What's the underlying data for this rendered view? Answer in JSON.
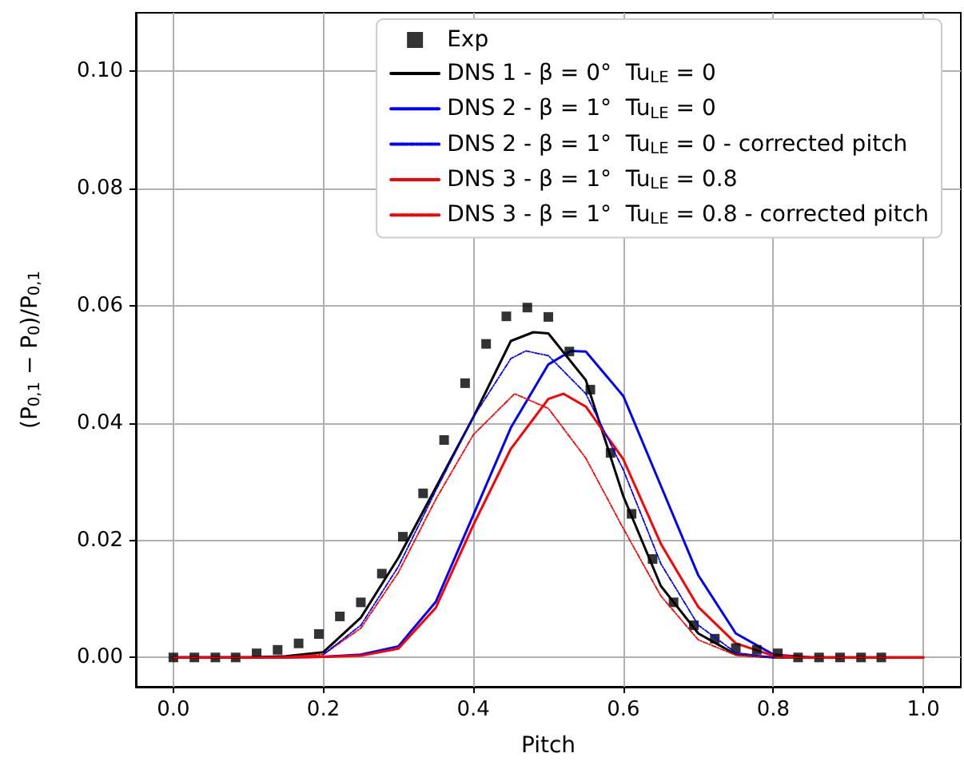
{
  "chart_data": {
    "type": "line",
    "xlabel": "Pitch",
    "ylabel": "(P$_{0,1}$ − P$_{0}$)/P$_{0,1}$",
    "xlim": [
      -0.05,
      1.05
    ],
    "ylim": [
      -0.005,
      0.11
    ],
    "xticks": [
      {
        "value": 0,
        "label": "0.0"
      },
      {
        "value": 0.2,
        "label": "0.2"
      },
      {
        "value": 0.4,
        "label": "0.4"
      },
      {
        "value": 0.6,
        "label": "0.6"
      },
      {
        "value": 0.8,
        "label": "0.8"
      },
      {
        "value": 1,
        "label": "1.0"
      }
    ],
    "yticks": [
      {
        "value": 0,
        "label": "0.00"
      },
      {
        "value": 0.02,
        "label": "0.02"
      },
      {
        "value": 0.04,
        "label": "0.04"
      },
      {
        "value": 0.06,
        "label": "0.06"
      },
      {
        "value": 0.08,
        "label": "0.08"
      },
      {
        "value": 0.1,
        "label": "0.10"
      }
    ],
    "grid": true,
    "legend": "top right",
    "series": [
      {
        "name": "Exp",
        "type": "scatter",
        "marker": "square",
        "color": "#000000",
        "x": [
          0,
          0.028,
          0.056,
          0.083,
          0.111,
          0.139,
          0.167,
          0.194,
          0.222,
          0.25,
          0.278,
          0.306,
          0.333,
          0.361,
          0.389,
          0.417,
          0.444,
          0.472,
          0.5,
          0.528,
          0.556,
          0.583,
          0.611,
          0.639,
          0.667,
          0.694,
          0.722,
          0.75,
          0.778,
          0.806,
          0.833,
          0.861,
          0.889,
          0.917,
          0.944
        ],
        "values": [
          0,
          0,
          0,
          0,
          0.0007,
          0.0013,
          0.0024,
          0.004,
          0.007,
          0.0094,
          0.0143,
          0.0206,
          0.028,
          0.0371,
          0.0468,
          0.0535,
          0.0582,
          0.0597,
          0.0581,
          0.0522,
          0.0457,
          0.0349,
          0.0245,
          0.0168,
          0.0094,
          0.0055,
          0.0032,
          0.0016,
          0.0013,
          0.0007,
          0,
          0,
          0,
          0,
          0
        ]
      },
      {
        "name": "DNS 1 - β = 0°  Tu$_{LE}$ = 0",
        "marker": "none",
        "line_style": "solid",
        "color": "#000000",
        "x": [
          0,
          0.1,
          0.15,
          0.2,
          0.25,
          0.3,
          0.35,
          0.4,
          0.45,
          0.48,
          0.5,
          0.55,
          0.6,
          0.65,
          0.7,
          0.75,
          0.8,
          0.9,
          1
        ],
        "values": [
          0,
          0,
          0.0002,
          0.0009,
          0.0068,
          0.017,
          0.029,
          0.041,
          0.054,
          0.0555,
          0.0553,
          0.0473,
          0.0275,
          0.0122,
          0.0041,
          0.0005,
          0,
          0,
          0
        ]
      },
      {
        "name": "DNS 2 - β = 1°  Tu$_{LE}$ = 0",
        "marker": "none",
        "line_style": "solid",
        "color": "#0000ff",
        "x": [
          0,
          0.15,
          0.2,
          0.25,
          0.3,
          0.35,
          0.4,
          0.45,
          0.5,
          0.53,
          0.55,
          0.6,
          0.65,
          0.7,
          0.75,
          0.8,
          0.85
        ],
        "values": [
          0,
          0,
          0.0001,
          0.0005,
          0.0019,
          0.0095,
          0.0243,
          0.0392,
          0.05,
          0.0523,
          0.0522,
          0.0446,
          0.0293,
          0.014,
          0.0041,
          0.0005,
          0
        ]
      },
      {
        "name": "DNS 2 - β = 1°  Tu$_{LE}$ = 0 - corrected pitch",
        "marker": "none",
        "line_style": "dashed",
        "color": "#0000ff",
        "x": [
          0.2,
          0.25,
          0.3,
          0.35,
          0.4,
          0.45,
          0.47,
          0.5,
          0.55,
          0.6,
          0.65,
          0.7,
          0.75,
          0.8
        ],
        "values": [
          0.0005,
          0.0055,
          0.0155,
          0.0285,
          0.041,
          0.051,
          0.0523,
          0.0515,
          0.045,
          0.032,
          0.016,
          0.0055,
          0.0008,
          0
        ]
      },
      {
        "name": "DNS 3 - β = 1°  Tu$_{LE}$ = 0.8",
        "marker": "none",
        "line_style": "solid",
        "color": "#ff0000",
        "x": [
          0,
          0.15,
          0.2,
          0.25,
          0.3,
          0.35,
          0.4,
          0.45,
          0.5,
          0.52,
          0.55,
          0.6,
          0.65,
          0.7,
          0.75,
          0.8,
          0.85,
          0.9,
          1
        ],
        "values": [
          0,
          0,
          0.0001,
          0.0003,
          0.0015,
          0.0085,
          0.0226,
          0.0356,
          0.0441,
          0.045,
          0.0428,
          0.0338,
          0.0194,
          0.0086,
          0.0024,
          0.0003,
          0,
          0,
          0
        ]
      },
      {
        "name": "DNS 3 - β = 1°  Tu$_{LE}$ = 0.8 - corrected pitch",
        "marker": "none",
        "line_style": "dashed",
        "color": "#ff0000",
        "x": [
          0,
          0.1,
          0.15,
          0.2,
          0.25,
          0.3,
          0.35,
          0.4,
          0.455,
          0.5,
          0.55,
          0.6,
          0.65,
          0.7,
          0.75,
          0.8,
          0.9,
          1
        ],
        "values": [
          0,
          0,
          0.0001,
          0.0005,
          0.005,
          0.0145,
          0.027,
          0.038,
          0.045,
          0.0425,
          0.034,
          0.022,
          0.0105,
          0.003,
          0.0004,
          0,
          0,
          0
        ]
      }
    ]
  }
}
